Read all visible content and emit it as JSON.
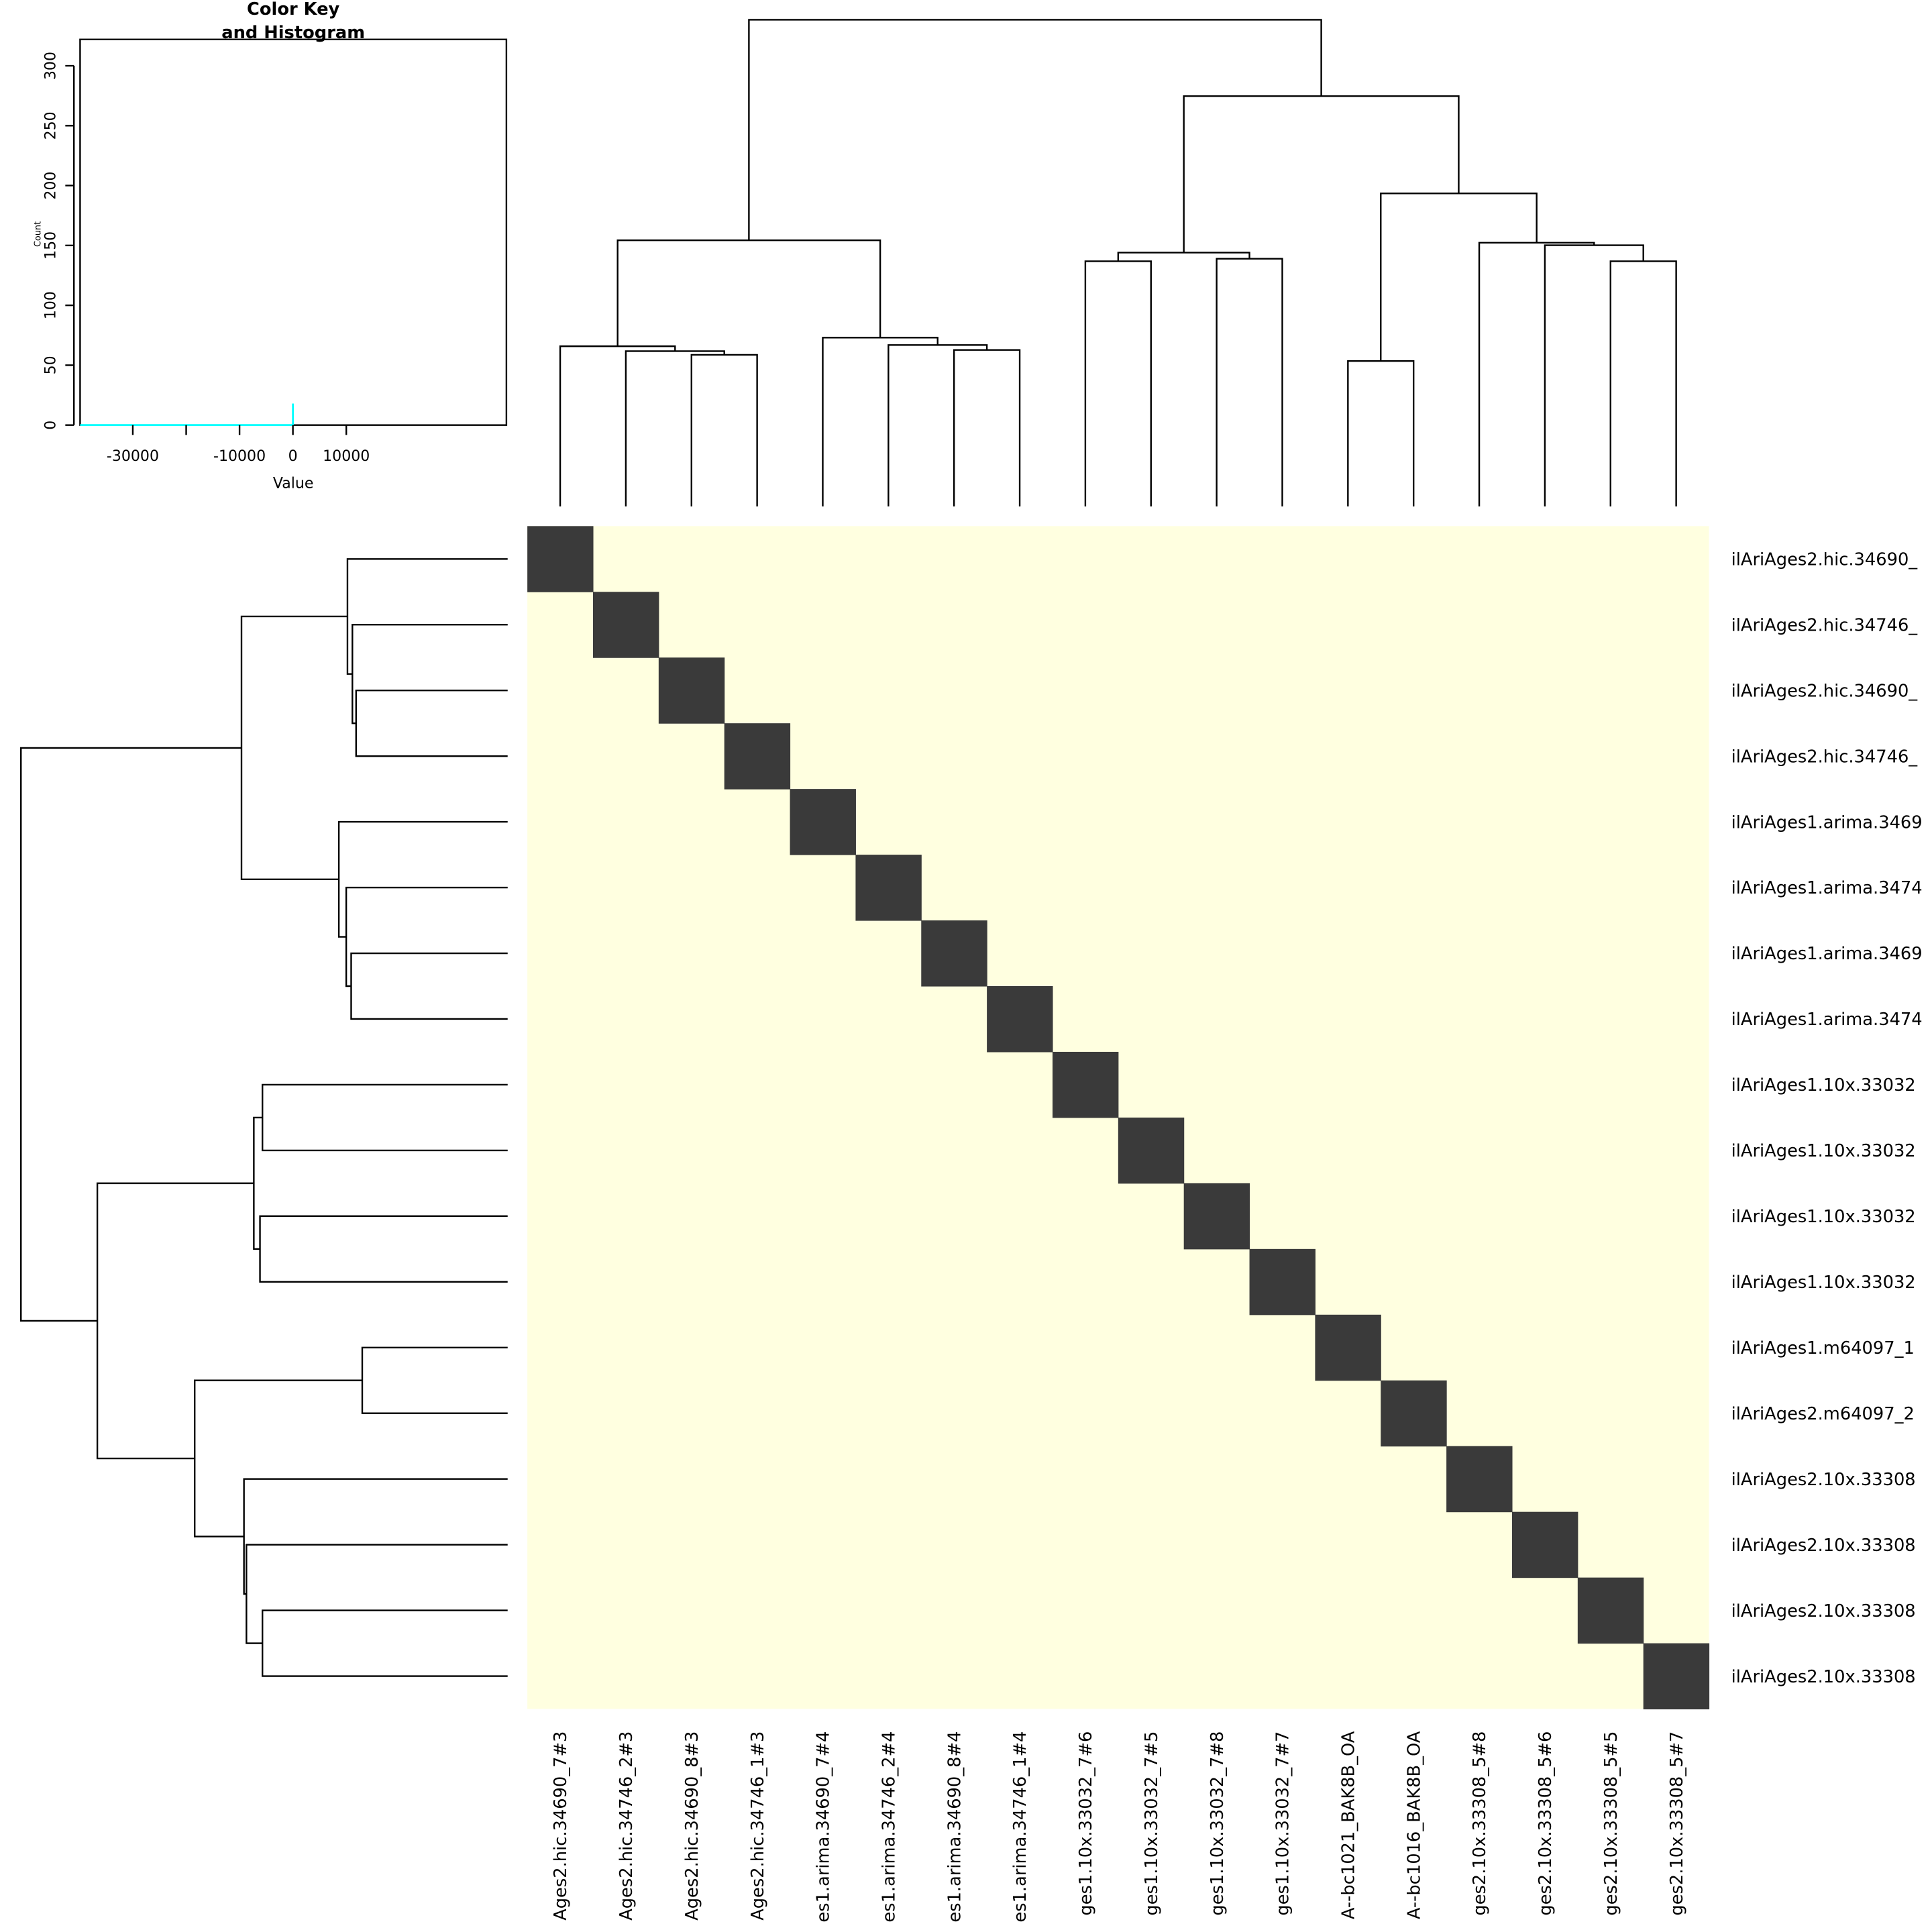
{
  "chart_data": {
    "type": "heatmap",
    "colors": {
      "low": "#FFFFE0",
      "high": "#3A3A3A",
      "histogram": "#00FFFF"
    },
    "rows": [
      "ilAriAges2.hic.34690_",
      "ilAriAges2.hic.34746_",
      "ilAriAges2.hic.34690_",
      "ilAriAges2.hic.34746_",
      "ilAriAges1.arima.3469",
      "ilAriAges1.arima.3474",
      "ilAriAges1.arima.3469",
      "ilAriAges1.arima.3474",
      "ilAriAges1.10x.33032",
      "ilAriAges1.10x.33032",
      "ilAriAges1.10x.33032",
      "ilAriAges1.10x.33032",
      "ilAriAges1.m64097_1",
      "ilAriAges2.m64097_2",
      "ilAriAges2.10x.33308",
      "ilAriAges2.10x.33308",
      "ilAriAges2.10x.33308",
      "ilAriAges2.10x.33308"
    ],
    "columns": [
      "Ages2.hic.34690_7#3",
      "Ages2.hic.34746_2#3",
      "Ages2.hic.34690_8#3",
      "Ages2.hic.34746_1#3",
      "es1.arima.34690_7#4",
      "es1.arima.34746_2#4",
      "es1.arima.34690_8#4",
      "es1.arima.34746_1#4",
      "ges1.10x.33032_7#6",
      "ges1.10x.33032_7#5",
      "ges1.10x.33032_7#8",
      "ges1.10x.33032_7#7",
      "A--bc1021_BAK8B_OA",
      "A--bc1016_BAK8B_OA",
      "ges2.10x.33308_5#8",
      "ges2.10x.33308_5#6",
      "ges2.10x.33308_5#5",
      "ges2.10x.33308_5#7"
    ],
    "cell_pattern": "diagonal cells dark, all off-diagonal cells light",
    "row_dendrogram": true,
    "column_dendrogram": true,
    "color_key": {
      "title_line1": "Color Key",
      "title_line2": "and Histogram",
      "xlabel": "Value",
      "ylabel": "Count",
      "xticks": [
        "-30000",
        "-10000",
        "0",
        "10000"
      ],
      "xtick_values": [
        -30000,
        -20000,
        -10000,
        0,
        10000
      ],
      "yticks": [
        "0",
        "50",
        "100",
        "150",
        "200",
        "250",
        "300"
      ],
      "xlim": [
        -39875,
        40000
      ],
      "ylim": [
        0,
        322
      ],
      "histogram_peak": {
        "value": 0,
        "count": 18
      }
    }
  }
}
